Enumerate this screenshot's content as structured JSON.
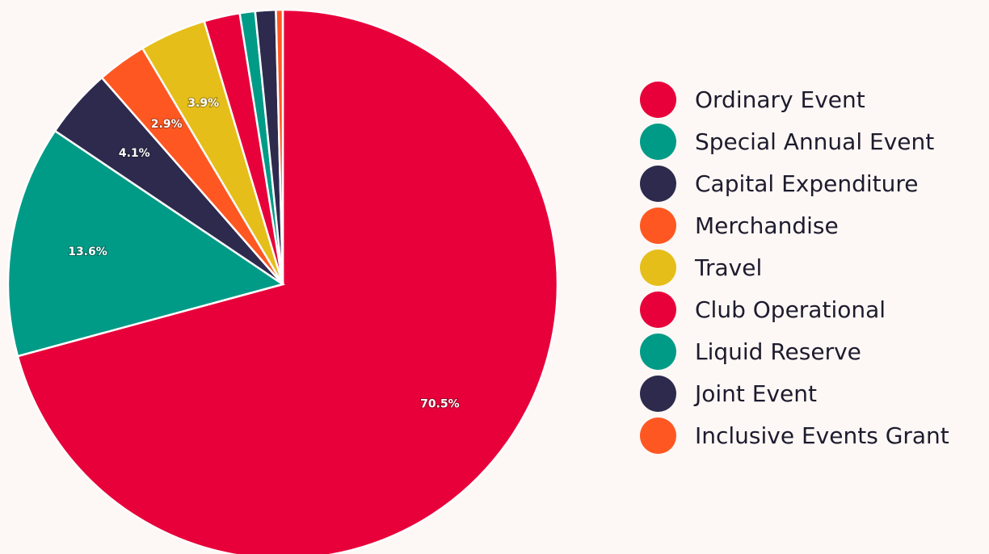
{
  "chart_data": {
    "type": "pie",
    "title": "",
    "legend_position": "right",
    "slices": [
      {
        "name": "Ordinary Event",
        "value": 70.5,
        "label": "70.5%",
        "color": "#e8003a"
      },
      {
        "name": "Special Annual Event",
        "value": 13.6,
        "label": "13.6%",
        "color": "#009b87"
      },
      {
        "name": "Capital Expenditure",
        "value": 4.1,
        "label": "4.1%",
        "color": "#2d2a4e"
      },
      {
        "name": "Merchandise",
        "value": 2.9,
        "label": "2.9%",
        "color": "#ff5722"
      },
      {
        "name": "Travel",
        "value": 3.9,
        "label": "3.9%",
        "color": "#e6be19"
      },
      {
        "name": "Club Operational",
        "value": 2.1,
        "label": "",
        "color": "#e8003a"
      },
      {
        "name": "Liquid Reserve",
        "value": 0.9,
        "label": "",
        "color": "#009b87"
      },
      {
        "name": "Joint Event",
        "value": 1.2,
        "label": "",
        "color": "#2d2a4e"
      },
      {
        "name": "Inclusive Events Grant",
        "value": 0.4,
        "label": "",
        "color": "#ff5722"
      }
    ]
  }
}
